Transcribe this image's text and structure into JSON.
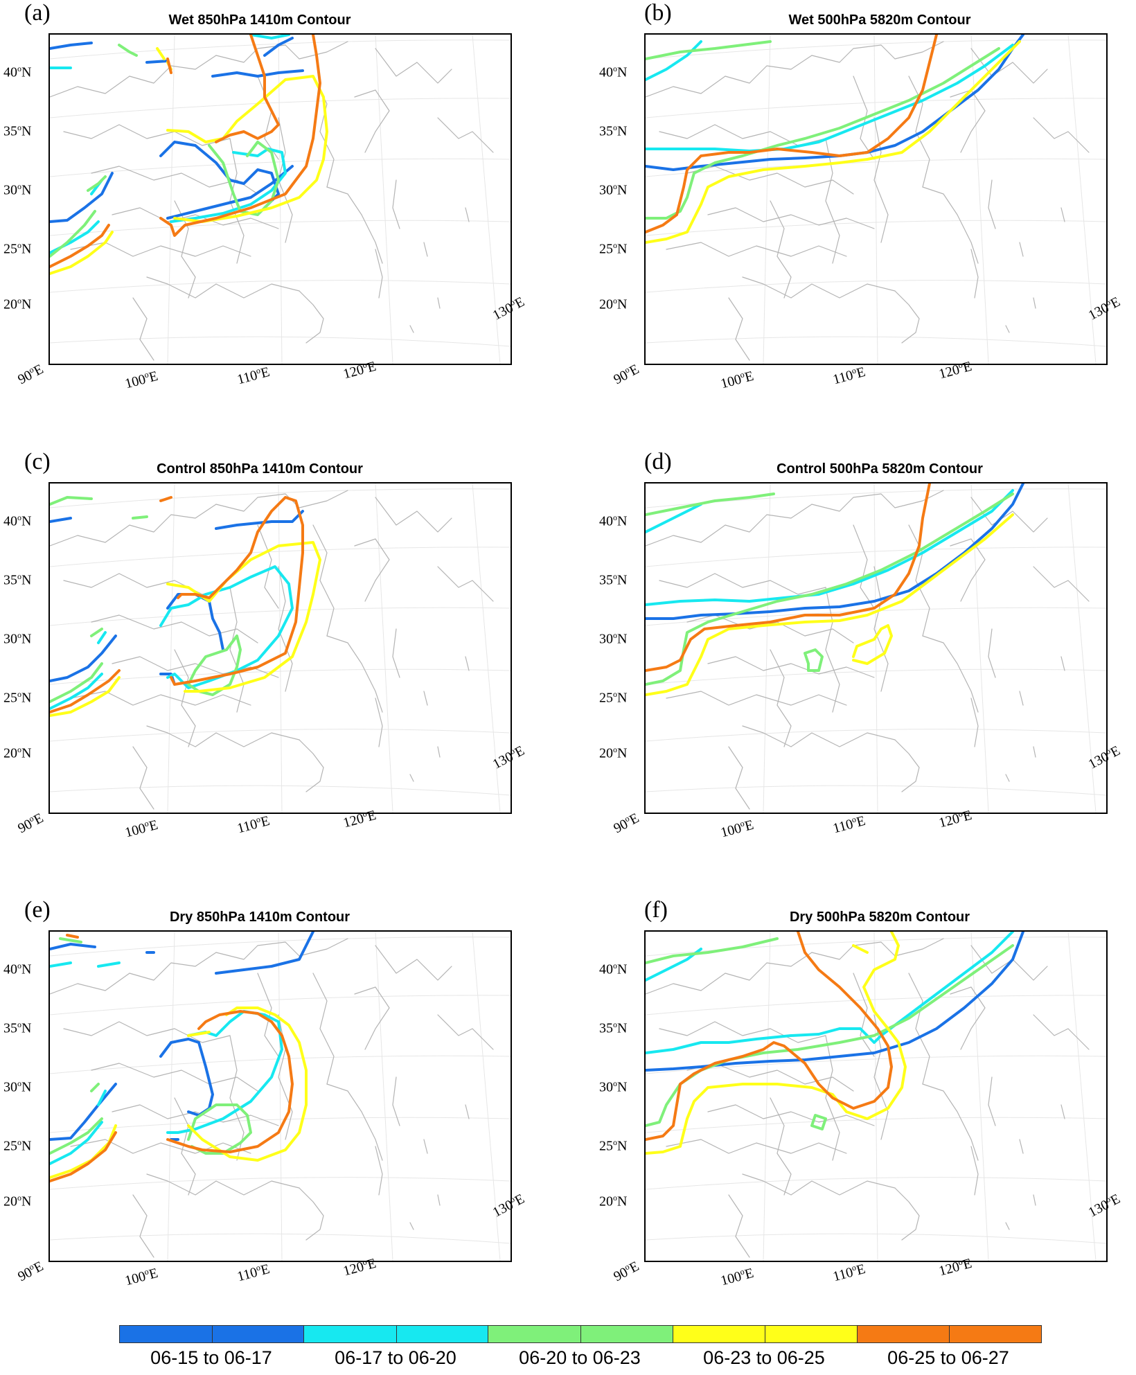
{
  "legend": {
    "items": [
      {
        "label": "06-15 to 06-17",
        "color": "#1a72e6"
      },
      {
        "label": "06-17 to 06-20",
        "color": "#17e8f0"
      },
      {
        "label": "06-20 to 06-23",
        "color": "#7ff07a"
      },
      {
        "label": "06-23 to 06-25",
        "color": "#ffff19"
      },
      {
        "label": "06-25 to 06-27",
        "color": "#f57a14"
      }
    ]
  },
  "axes": {
    "lat_labels": [
      "20",
      "25",
      "30",
      "35",
      "40"
    ],
    "lon_labels": [
      "90",
      "100",
      "110",
      "120",
      "130"
    ],
    "lat_suffix": "N",
    "lon_suffix": "E",
    "degree": "o"
  },
  "panels": [
    {
      "letter": "(a)",
      "title": "Wet 850hPa 1410m Contour"
    },
    {
      "letter": "(b)",
      "title": "Wet 500hPa 5820m Contour"
    },
    {
      "letter": "(c)",
      "title": "Control 850hPa 1410m Contour"
    },
    {
      "letter": "(d)",
      "title": "Control 500hPa 5820m Contour"
    },
    {
      "letter": "(e)",
      "title": "Dry 850hPa 1410m Contour"
    },
    {
      "letter": "(f)",
      "title": "Dry 500hPa 5820m Contour"
    }
  ]
}
